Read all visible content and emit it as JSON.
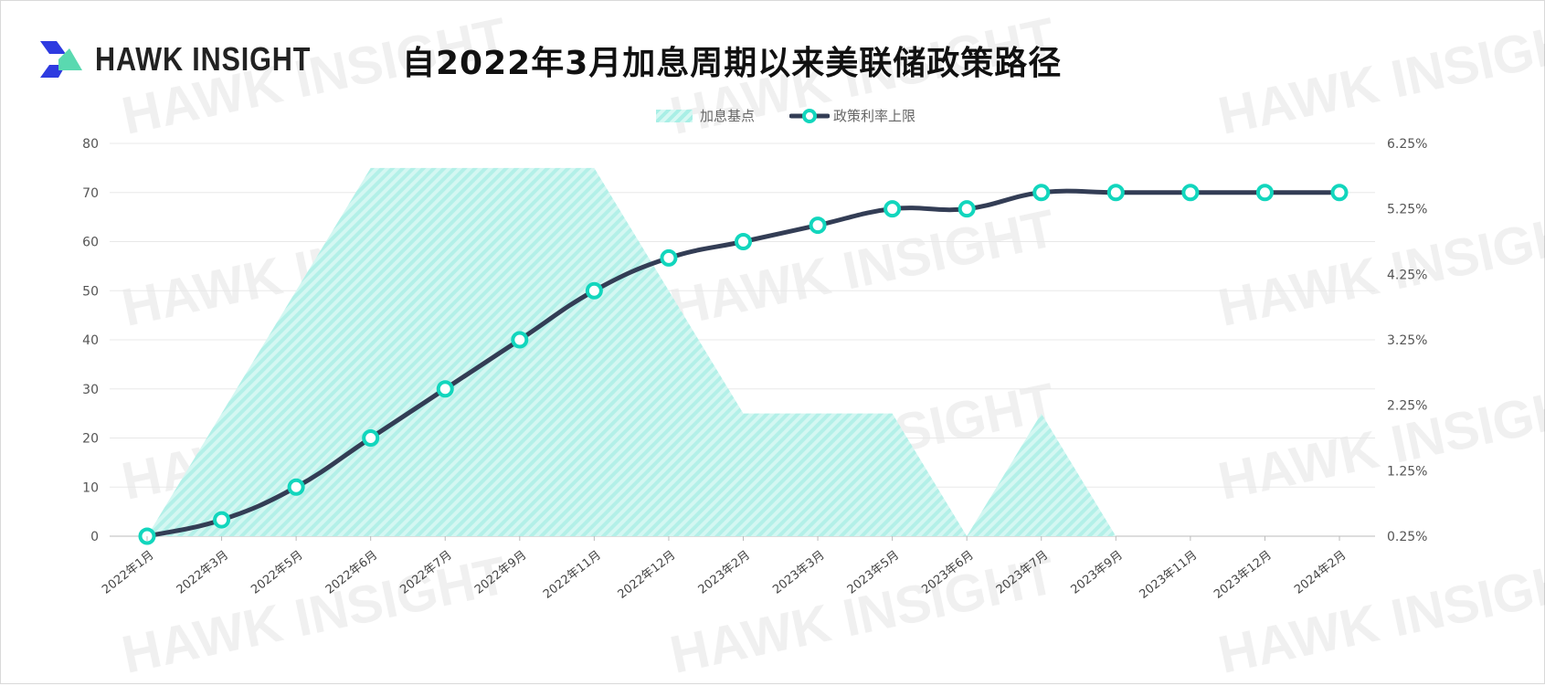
{
  "brand": {
    "name": "HAWK INSIGHT",
    "watermark": "HAWK INSIGHT"
  },
  "colors": {
    "area": "#a9efe6",
    "line": "#333d55",
    "marker": "#12d6bd",
    "logo_blue": "#2e3be0",
    "logo_green": "#5ad9b0"
  },
  "chart_data": {
    "type": "line+area",
    "title": "自2022年3月加息周期以来美联储政策路径",
    "legend_position": "top",
    "categories": [
      "2022年1月",
      "2022年3月",
      "2022年5月",
      "2022年6月",
      "2022年7月",
      "2022年9月",
      "2022年11月",
      "2022年12月",
      "2023年2月",
      "2023年3月",
      "2023年5月",
      "2023年6月",
      "2023年7月",
      "2023年9月",
      "2023年11月",
      "2023年12月",
      "2024年2月"
    ],
    "series": [
      {
        "name": "加息基点",
        "type": "area",
        "axis": "left",
        "values": [
          0,
          25,
          50,
          75,
          75,
          75,
          75,
          50,
          25,
          25,
          25,
          0,
          25,
          0,
          0,
          0,
          0
        ]
      },
      {
        "name": "政策利率上限",
        "type": "line",
        "axis": "right",
        "values": [
          0.25,
          0.5,
          1.0,
          1.75,
          2.5,
          3.25,
          4.0,
          4.5,
          4.75,
          5.0,
          5.25,
          5.25,
          5.5,
          5.5,
          5.5,
          5.5,
          5.5
        ]
      }
    ],
    "left_axis": {
      "ylim": [
        0,
        80
      ],
      "ticks": [
        "0",
        "10",
        "20",
        "30",
        "40",
        "50",
        "60",
        "70",
        "80"
      ]
    },
    "right_axis": {
      "ylim": [
        0.25,
        6.25
      ],
      "ticks": [
        "0.25%",
        "1.25%",
        "2.25%",
        "3.25%",
        "4.25%",
        "5.25%",
        "6.25%"
      ]
    },
    "grid": true
  }
}
